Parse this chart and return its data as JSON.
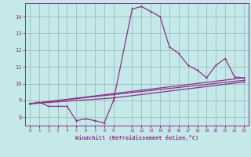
{
  "background_color": "#c5e8e8",
  "grid_color": "#9bbfbf",
  "line_color": "#883388",
  "spine_color": "#883388",
  "xlabel": "Windchill (Refroidissement éolien,°C)",
  "xlim": [
    -0.5,
    23.5
  ],
  "ylim": [
    7.5,
    14.8
  ],
  "xticks": [
    0,
    1,
    2,
    3,
    4,
    5,
    6,
    7,
    8,
    9,
    11,
    12,
    13,
    14,
    15,
    16,
    17,
    18,
    19,
    20,
    21,
    22,
    23
  ],
  "yticks": [
    8,
    9,
    10,
    11,
    12,
    13,
    14
  ],
  "curve_x": [
    0,
    1,
    2,
    3,
    4,
    5,
    6,
    7,
    8,
    9,
    11,
    12,
    13,
    14,
    15,
    16,
    17,
    18,
    19,
    20,
    21,
    22,
    23
  ],
  "curve_y": [
    8.8,
    8.9,
    8.65,
    8.65,
    8.65,
    7.8,
    7.9,
    7.8,
    7.65,
    9.0,
    14.45,
    14.6,
    14.3,
    14.0,
    12.2,
    11.8,
    11.1,
    10.8,
    10.35,
    11.1,
    11.5,
    10.4,
    10.35
  ],
  "line1_x": [
    0,
    23
  ],
  "line1_y": [
    8.8,
    10.35
  ],
  "line2_x": [
    0,
    9,
    23
  ],
  "line2_y": [
    8.8,
    9.35,
    10.2
  ],
  "line3_x": [
    0,
    9,
    23
  ],
  "line3_y": [
    8.8,
    9.15,
    10.1
  ]
}
